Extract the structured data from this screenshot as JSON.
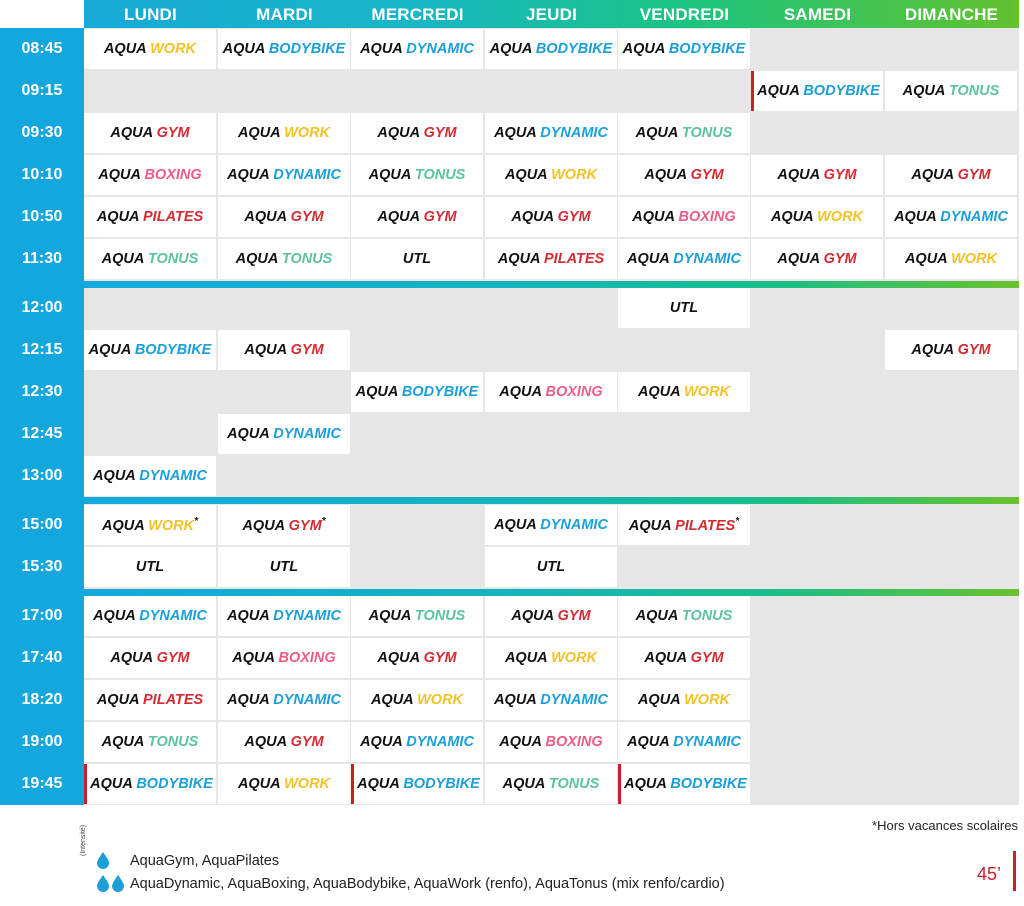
{
  "days": [
    "LUNDI",
    "MARDI",
    "MERCREDI",
    "JEUDI",
    "VENDREDI",
    "SAMEDI",
    "DIMANCHE"
  ],
  "times": [
    "08:45",
    "09:15",
    "09:30",
    "10:10",
    "10:50",
    "11:30",
    "12:00",
    "12:15",
    "12:30",
    "12:45",
    "13:00",
    "15:00",
    "15:30",
    "17:00",
    "17:40",
    "18:20",
    "19:00",
    "19:45"
  ],
  "activity_colors": {
    "WORK": "#f2c227",
    "BODYBIKE": "#1a9fd8",
    "DYNAMIC": "#1a9fd8",
    "GYM": "#d42b33",
    "TONUS": "#5cc2a1",
    "BOXING": "#ee5d85",
    "PILATES": "#d42b33"
  },
  "accent_red": "#c8202a",
  "schedule": [
    [
      "AQUA WORK",
      "AQUA BODYBIKE",
      "AQUA DYNAMIC",
      "AQUA BODYBIKE",
      "AQUA BODYBIKE",
      "",
      ""
    ],
    [
      "",
      "",
      "",
      "",
      "",
      "AQUA BODYBIKE",
      "AQUA TONUS"
    ],
    [
      "AQUA GYM",
      "AQUA WORK",
      "AQUA GYM",
      "AQUA DYNAMIC",
      "AQUA TONUS",
      "",
      ""
    ],
    [
      "AQUA BOXING",
      "AQUA DYNAMIC",
      "AQUA TONUS",
      "AQUA WORK",
      "AQUA GYM",
      "AQUA GYM",
      "AQUA GYM"
    ],
    [
      "AQUA PILATES",
      "AQUA GYM",
      "AQUA GYM",
      "AQUA GYM",
      "AQUA BOXING",
      "AQUA WORK",
      "AQUA DYNAMIC"
    ],
    [
      "AQUA TONUS",
      "AQUA TONUS",
      "UTL",
      "AQUA PILATES",
      "AQUA DYNAMIC",
      "AQUA GYM",
      "AQUA WORK"
    ],
    [
      "",
      "",
      "",
      "",
      "UTL",
      "",
      ""
    ],
    [
      "AQUA BODYBIKE",
      "AQUA GYM",
      "",
      "",
      "",
      "",
      "AQUA GYM"
    ],
    [
      "",
      "",
      "AQUA BODYBIKE",
      "AQUA BOXING",
      "AQUA WORK",
      "",
      ""
    ],
    [
      "",
      "AQUA DYNAMIC",
      "",
      "",
      "",
      "",
      ""
    ],
    [
      "AQUA DYNAMIC",
      "",
      "",
      "",
      "",
      "",
      ""
    ],
    [
      "AQUA WORK*",
      "AQUA GYM*",
      "",
      "AQUA DYNAMIC",
      "AQUA PILATES*",
      "",
      ""
    ],
    [
      "UTL",
      "UTL",
      "",
      "UTL",
      "",
      "",
      ""
    ],
    [
      "AQUA DYNAMIC",
      "AQUA DYNAMIC",
      "AQUA TONUS",
      "AQUA GYM",
      "AQUA TONUS",
      "",
      ""
    ],
    [
      "AQUA GYM",
      "AQUA BOXING",
      "AQUA GYM",
      "AQUA WORK",
      "AQUA GYM",
      "",
      ""
    ],
    [
      "AQUA PILATES",
      "AQUA DYNAMIC",
      "AQUA WORK",
      "AQUA DYNAMIC",
      "AQUA WORK",
      "",
      ""
    ],
    [
      "AQUA TONUS",
      "AQUA GYM",
      "AQUA DYNAMIC",
      "AQUA BOXING",
      "AQUA DYNAMIC",
      "",
      ""
    ],
    [
      "AQUA BODYBIKE",
      "AQUA WORK",
      "AQUA BODYBIKE",
      "AQUA TONUS",
      "AQUA BODYBIKE",
      "",
      ""
    ]
  ],
  "note": "*Hors vacances scolaires",
  "legend": {
    "intensity_label": "(Intensité)",
    "level1": "AquaGym, AquaPilates",
    "level2": "AquaDynamic, AquaBoxing, AquaBodybike, AquaWork (renfo), AquaTonus (mix renfo/cardio)"
  },
  "duration": "45’"
}
